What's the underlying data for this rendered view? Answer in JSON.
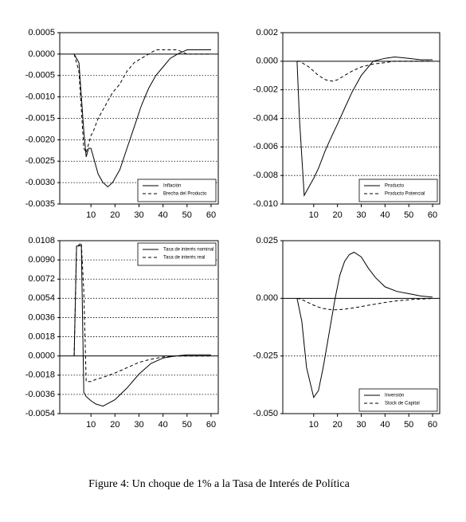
{
  "chart_data": [
    {
      "type": "line",
      "xlim": [
        -3,
        63
      ],
      "xticks": [
        10,
        20,
        30,
        40,
        50,
        60
      ],
      "ylim": [
        -0.0035,
        0.0005
      ],
      "yticks": [
        {
          "value": 0.0005,
          "label": "0.0005"
        },
        {
          "value": 0,
          "label": "0.0000"
        },
        {
          "value": -0.0005,
          "label": "-0.0005"
        },
        {
          "value": -0.001,
          "label": "-0.0010"
        },
        {
          "value": -0.0015,
          "label": "-0.0015"
        },
        {
          "value": -0.002,
          "label": "-0.0020"
        },
        {
          "value": -0.0025,
          "label": "-0.0025"
        },
        {
          "value": -0.003,
          "label": "-0.0030"
        },
        {
          "value": -0.0035,
          "label": "-0.0035"
        }
      ],
      "grid": true,
      "legend": "lower right",
      "x": [
        3,
        5,
        7,
        8,
        9,
        10,
        11,
        13,
        15,
        17,
        19,
        22,
        25,
        28,
        31,
        34,
        37,
        40,
        43,
        46,
        50,
        55,
        60
      ],
      "series": [
        {
          "name": "Inflación",
          "color": "#000000",
          "linestyle": "solid",
          "values": [
            0,
            -0.0002,
            -0.0018,
            -0.0024,
            -0.0022,
            -0.0022,
            -0.0024,
            -0.0028,
            -0.003,
            -0.0031,
            -0.003,
            -0.0027,
            -0.0022,
            -0.0017,
            -0.0012,
            -0.0008,
            -0.0005,
            -0.0003,
            -0.0001,
            0,
            0.0001,
            0.0001,
            0.0001
          ]
        },
        {
          "name": "Brecha del Producto",
          "color": "#000000",
          "linestyle": "dashed",
          "values": [
            0,
            -0.0004,
            -0.0022,
            -0.0023,
            -0.0021,
            -0.0019,
            -0.0018,
            -0.0015,
            -0.0013,
            -0.0011,
            -0.0009,
            -0.0007,
            -0.0004,
            -0.0002,
            -0.0001,
            0,
            0.0001,
            0.0001,
            0.0001,
            0.0001,
            0,
            0,
            0
          ]
        }
      ]
    },
    {
      "type": "line",
      "xlim": [
        -3,
        63
      ],
      "xticks": [
        10,
        20,
        30,
        40,
        50,
        60
      ],
      "ylim": [
        -0.01,
        0.002
      ],
      "yticks": [
        {
          "value": 0.002,
          "label": "0.002"
        },
        {
          "value": 0,
          "label": "0.000"
        },
        {
          "value": -0.002,
          "label": "-0.002"
        },
        {
          "value": -0.004,
          "label": "-0.004"
        },
        {
          "value": -0.006,
          "label": "-0.006"
        },
        {
          "value": -0.008,
          "label": "-0.008"
        },
        {
          "value": -0.01,
          "label": "-0.010"
        }
      ],
      "grid": true,
      "legend": "lower right",
      "x": [
        3,
        4,
        6,
        8,
        10,
        12,
        15,
        18,
        20,
        23,
        26,
        30,
        35,
        40,
        44,
        50,
        55,
        60
      ],
      "series": [
        {
          "name": "Producto",
          "color": "#000000",
          "linestyle": "solid",
          "values": [
            0,
            -0.004,
            -0.0094,
            -0.0088,
            -0.0082,
            -0.0075,
            -0.0062,
            -0.0051,
            -0.0044,
            -0.0033,
            -0.0022,
            -0.001,
            0,
            0.0002,
            0.0003,
            0.0002,
            0.0001,
            0.0001
          ]
        },
        {
          "name": "Producto Potencial",
          "color": "#000000",
          "linestyle": "dashed",
          "values": [
            0,
            0,
            -0.0002,
            -0.0004,
            -0.0007,
            -0.001,
            -0.0013,
            -0.0014,
            -0.0013,
            -0.001,
            -0.0007,
            -0.0004,
            -0.0002,
            -0.0001,
            0,
            0,
            0,
            0
          ]
        }
      ]
    },
    {
      "type": "line",
      "xlim": [
        -3,
        63
      ],
      "xticks": [
        10,
        20,
        30,
        40,
        50,
        60
      ],
      "ylim": [
        -0.0054,
        0.0108
      ],
      "yticks": [
        {
          "value": 0.0108,
          "label": "0.0108"
        },
        {
          "value": 0.009,
          "label": "0.0090"
        },
        {
          "value": 0.0072,
          "label": "0.0072"
        },
        {
          "value": 0.0054,
          "label": "0.0054"
        },
        {
          "value": 0.0036,
          "label": "0.0036"
        },
        {
          "value": 0.0018,
          "label": "0.0018"
        },
        {
          "value": 0,
          "label": "0.0000"
        },
        {
          "value": -0.0018,
          "label": "-0.0018"
        },
        {
          "value": -0.0036,
          "label": "-0.0036"
        },
        {
          "value": -0.0054,
          "label": "-0.0054"
        }
      ],
      "grid": true,
      "legend": "upper right",
      "x": [
        3,
        4,
        5,
        6,
        7,
        8,
        10,
        12,
        15,
        20,
        25,
        30,
        35,
        40,
        45,
        50,
        55,
        60
      ],
      "series": [
        {
          "name": "Tasa de interés nominal",
          "color": "#000000",
          "linestyle": "solid",
          "values": [
            0,
            0.0103,
            0.0103,
            0.0104,
            -0.0034,
            -0.0038,
            -0.0042,
            -0.0045,
            -0.0047,
            -0.0041,
            -0.003,
            -0.0017,
            -0.0007,
            -0.0002,
            0,
            0.0001,
            0.0001,
            0.0001
          ]
        },
        {
          "name": "Tasa de interés real",
          "color": "#000000",
          "linestyle": "dashed",
          "values": [
            0,
            0.0103,
            0.0104,
            0.0106,
            0.006,
            -0.0024,
            -0.0024,
            -0.0022,
            -0.002,
            -0.0016,
            -0.0011,
            -0.0006,
            -0.0003,
            -0.0001,
            0,
            0,
            0,
            0
          ]
        }
      ]
    },
    {
      "type": "line",
      "xlim": [
        -3,
        63
      ],
      "xticks": [
        10,
        20,
        30,
        40,
        50,
        60
      ],
      "ylim": [
        -0.05,
        0.025
      ],
      "yticks": [
        {
          "value": 0.025,
          "label": "0.025"
        },
        {
          "value": 0,
          "label": "0.000"
        },
        {
          "value": -0.025,
          "label": "-0.025"
        },
        {
          "value": -0.05,
          "label": "-0.050"
        }
      ],
      "grid": true,
      "legend": "lower right",
      "x": [
        3,
        5,
        7,
        10,
        12,
        14,
        17,
        19,
        21,
        23,
        25,
        27,
        30,
        33,
        36,
        40,
        45,
        50,
        55,
        60
      ],
      "series": [
        {
          "name": "Inversión",
          "color": "#000000",
          "linestyle": "solid",
          "values": [
            0,
            -0.01,
            -0.03,
            -0.043,
            -0.04,
            -0.03,
            -0.012,
            0,
            0.01,
            0.016,
            0.019,
            0.02,
            0.018,
            0.013,
            0.009,
            0.005,
            0.003,
            0.002,
            0.001,
            0.0005
          ]
        },
        {
          "name": "Stock de Capital",
          "color": "#000000",
          "linestyle": "dashed",
          "values": [
            0,
            -0.0005,
            -0.0015,
            -0.003,
            -0.0038,
            -0.0044,
            -0.0049,
            -0.005,
            -0.0049,
            -0.0047,
            -0.0044,
            -0.0041,
            -0.0036,
            -0.003,
            -0.0025,
            -0.0018,
            -0.0011,
            -0.0006,
            -0.0003,
            -0.0001
          ]
        }
      ]
    }
  ],
  "caption": "Figure 4:  Un choque de 1% a la Tasa de Interés de Política"
}
